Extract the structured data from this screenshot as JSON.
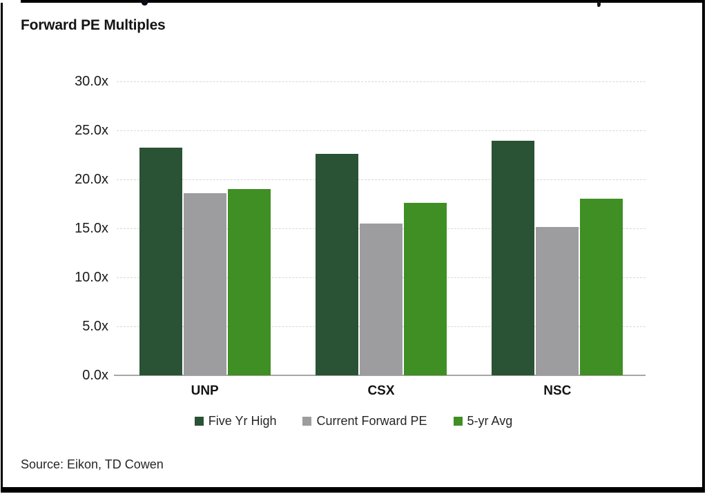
{
  "header": {
    "title": "Forward PE Multiples"
  },
  "footer": {
    "source": "Source: Eikon, TD Cowen"
  },
  "colors": {
    "five_yr_high": "#2a5234",
    "current_forward_pe": "#9d9da0",
    "five_yr_avg": "#3f8f24",
    "gridline": "#d6d6d6",
    "axis": "#a6a6a6",
    "frame": "#000000",
    "text": "#1a1a1a"
  },
  "chart_data": {
    "type": "bar",
    "title": "Forward PE Multiples",
    "categories": [
      "UNP",
      "CSX",
      "NSC"
    ],
    "series": [
      {
        "name": "Five Yr High",
        "color": "#2a5234",
        "values": [
          23.2,
          22.6,
          23.9
        ]
      },
      {
        "name": "Current Forward PE",
        "color": "#9d9da0",
        "values": [
          18.6,
          15.5,
          15.1
        ]
      },
      {
        "name": "5-yr Avg",
        "color": "#3f8f24",
        "values": [
          19.0,
          17.6,
          18.0
        ]
      }
    ],
    "yticks": [
      {
        "value": 0,
        "label": "0.0x"
      },
      {
        "value": 5,
        "label": "5.0x"
      },
      {
        "value": 10,
        "label": "10.0x"
      },
      {
        "value": 15,
        "label": "15.0x"
      },
      {
        "value": 20,
        "label": "20.0x"
      },
      {
        "value": 25,
        "label": "25.0x"
      },
      {
        "value": 30,
        "label": "30.0x"
      }
    ],
    "ylim": [
      0,
      30
    ],
    "grid": true,
    "legend_position": "bottom",
    "value_suffix": "x"
  }
}
